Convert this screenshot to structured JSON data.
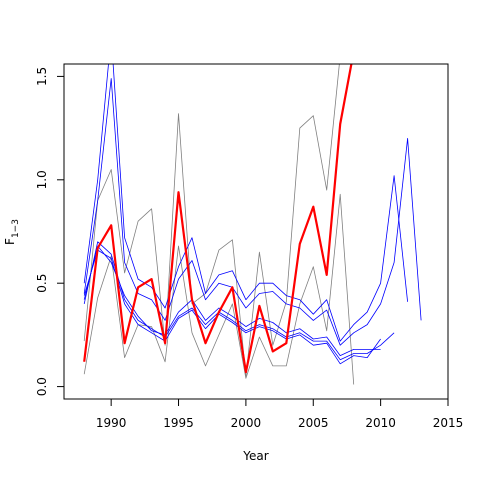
{
  "chart_data": {
    "type": "line",
    "title": "",
    "xlabel": "Year",
    "ylabel_main": "F",
    "ylabel_sub": "1−3",
    "xlim": [
      1986.5,
      2015
    ],
    "ylim": [
      -0.06,
      1.56
    ],
    "xticks": [
      1990,
      1995,
      2000,
      2005,
      2010,
      2015
    ],
    "yticks": [
      0.0,
      0.5,
      1.0,
      1.5
    ],
    "ytick_labels": [
      "0.0",
      "0.5",
      "1.0",
      "1.5"
    ],
    "grid": false,
    "legend": "none",
    "series": [
      {
        "color": "#808080",
        "width": 0.8,
        "x": [
          1988,
          1989,
          1990,
          1991,
          1992,
          1993,
          1994,
          1995,
          1996,
          1997,
          1998,
          1999,
          2000,
          2001,
          2002,
          2003,
          2004,
          2005,
          2006,
          2007,
          2008
        ],
        "y": [
          0.22,
          0.9,
          1.05,
          0.55,
          0.8,
          0.86,
          0.2,
          1.32,
          0.4,
          0.45,
          0.66,
          0.71,
          0.05,
          0.65,
          0.2,
          0.41,
          1.25,
          1.31,
          0.95,
          1.6,
          1.7
        ]
      },
      {
        "color": "#808080",
        "width": 0.8,
        "x": [
          1988,
          1989,
          1990,
          1991,
          1992,
          1993,
          1994,
          1995,
          1996,
          1997,
          1998,
          1999,
          2000,
          2001,
          2002,
          2003,
          2004,
          2005,
          2006,
          2007,
          2008
        ],
        "y": [
          0.06,
          0.43,
          0.63,
          0.14,
          0.3,
          0.29,
          0.12,
          0.68,
          0.26,
          0.1,
          0.25,
          0.4,
          0.04,
          0.24,
          0.1,
          0.1,
          0.4,
          0.58,
          0.27,
          0.93,
          0.01
        ]
      },
      {
        "color": "#0000ff",
        "width": 0.8,
        "x": [
          1988,
          1989,
          1990,
          1991,
          1992,
          1993,
          1994,
          1995,
          1996,
          1997,
          1998,
          1999,
          2000,
          2001,
          2002,
          2003,
          2004,
          2005,
          2006,
          2007,
          2008,
          2009,
          2010,
          2011,
          2012
        ],
        "y": [
          0.5,
          1.0,
          1.7,
          0.72,
          0.52,
          0.48,
          0.38,
          0.58,
          0.72,
          0.45,
          0.54,
          0.56,
          0.42,
          0.5,
          0.5,
          0.44,
          0.42,
          0.35,
          0.42,
          0.22,
          0.3,
          0.36,
          0.5,
          1.02,
          0.41
        ]
      },
      {
        "color": "#0000ff",
        "width": 0.8,
        "x": [
          1988,
          1989,
          1990,
          1991,
          1992,
          1993,
          1994,
          1995,
          1996,
          1997,
          1998,
          1999,
          2000,
          2001,
          2002,
          2003,
          2004,
          2005,
          2006,
          2007,
          2008,
          2009,
          2010,
          2011,
          2012,
          2013
        ],
        "y": [
          0.45,
          0.9,
          1.49,
          0.6,
          0.45,
          0.42,
          0.32,
          0.52,
          0.61,
          0.42,
          0.5,
          0.48,
          0.38,
          0.45,
          0.46,
          0.4,
          0.38,
          0.32,
          0.37,
          0.2,
          0.26,
          0.3,
          0.4,
          0.6,
          1.2,
          0.32
        ]
      },
      {
        "color": "#0000ff",
        "width": 0.8,
        "x": [
          1988,
          1989,
          1990,
          1991,
          1992,
          1993,
          1994,
          1995,
          1996,
          1997,
          1998,
          1999,
          2000,
          2001,
          2002,
          2003,
          2004,
          2005,
          2006,
          2007,
          2008,
          2009,
          2010,
          2011
        ],
        "y": [
          0.4,
          0.7,
          0.64,
          0.42,
          0.32,
          0.28,
          0.24,
          0.34,
          0.38,
          0.3,
          0.36,
          0.32,
          0.27,
          0.3,
          0.28,
          0.24,
          0.26,
          0.22,
          0.22,
          0.13,
          0.16,
          0.16,
          0.2,
          0.26
        ]
      },
      {
        "color": "#0000ff",
        "width": 0.8,
        "x": [
          1988,
          1989,
          1990,
          1991,
          1992,
          1993,
          1994,
          1995,
          1996,
          1997,
          1998,
          1999,
          2000,
          2001,
          2002,
          2003,
          2004,
          2005,
          2006,
          2007,
          2008,
          2009,
          2010
        ],
        "y": [
          0.44,
          0.66,
          0.62,
          0.4,
          0.3,
          0.26,
          0.22,
          0.33,
          0.37,
          0.28,
          0.35,
          0.31,
          0.26,
          0.29,
          0.27,
          0.23,
          0.25,
          0.2,
          0.21,
          0.11,
          0.15,
          0.14,
          0.23
        ]
      },
      {
        "color": "#0000ff",
        "width": 0.8,
        "x": [
          1988,
          1989,
          1990,
          1991,
          1992,
          1993,
          1994,
          1995,
          1996,
          1997,
          1998,
          1999,
          2000,
          2001,
          2002,
          2003,
          2004,
          2005,
          2006,
          2007,
          2008,
          2009,
          2010
        ],
        "y": [
          0.42,
          0.68,
          0.6,
          0.44,
          0.34,
          0.27,
          0.25,
          0.36,
          0.42,
          0.32,
          0.38,
          0.34,
          0.29,
          0.33,
          0.31,
          0.26,
          0.28,
          0.23,
          0.24,
          0.15,
          0.18,
          0.18,
          0.18
        ]
      },
      {
        "color": "#ff0000",
        "width": 2.2,
        "x": [
          1988,
          1989,
          1990,
          1991,
          1992,
          1993,
          1994,
          1995,
          1996,
          1997,
          1998,
          1999,
          2000,
          2001,
          2002,
          2003,
          2004,
          2005,
          2006,
          2007,
          2008
        ],
        "y": [
          0.12,
          0.67,
          0.78,
          0.21,
          0.48,
          0.52,
          0.21,
          0.94,
          0.42,
          0.21,
          0.36,
          0.48,
          0.07,
          0.39,
          0.17,
          0.21,
          0.69,
          0.87,
          0.54,
          1.27,
          1.62
        ]
      }
    ]
  }
}
